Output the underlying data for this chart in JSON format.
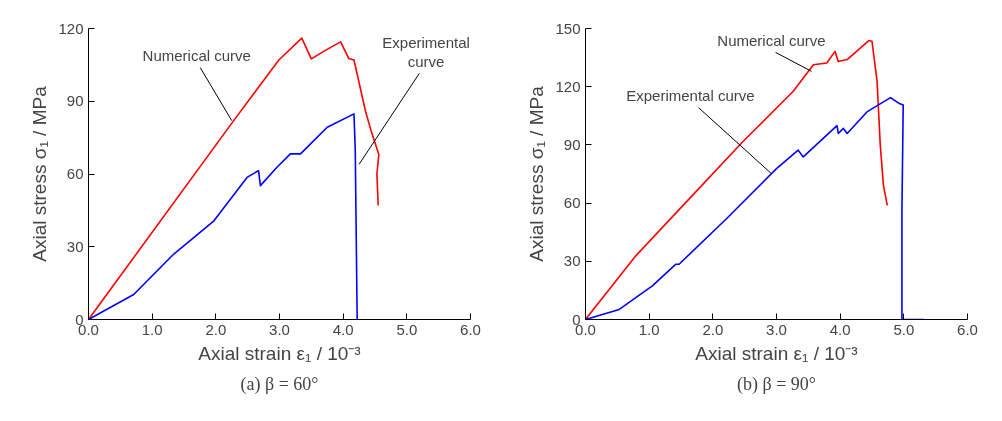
{
  "chart_data": [
    {
      "type": "line",
      "title": "(a) β = 60°",
      "xlabel": "Axial strain ε₁ / 10⁻³",
      "ylabel": "Axial stress σ₁ / MPa",
      "xlim": [
        0,
        6
      ],
      "ylim": [
        0,
        120
      ],
      "xticks": [
        {
          "value": 0,
          "label": "0.0"
        },
        {
          "value": 1,
          "label": "1.0"
        },
        {
          "value": 2,
          "label": "2.0"
        },
        {
          "value": 3,
          "label": "3.0"
        },
        {
          "value": 4,
          "label": "4.0"
        },
        {
          "value": 5,
          "label": "5.0"
        },
        {
          "value": 6,
          "label": "6.0"
        }
      ],
      "yticks": [
        0,
        30,
        60,
        90,
        120
      ],
      "grid": false,
      "marker": "none",
      "line_style": "solid",
      "series": [
        {
          "color": "#ff0000",
          "x": [
            0,
            2.28,
            2.99,
            3.35,
            3.5,
            3.72,
            3.96,
            4.09,
            4.17,
            4.35,
            4.43,
            4.56,
            4.53,
            4.55
          ],
          "values": [
            0,
            82,
            107,
            116,
            107.5,
            111,
            114.5,
            107.6,
            107,
            86,
            78.6,
            68,
            60,
            47
          ]
        },
        {
          "color": "#0000ff",
          "x": [
            0,
            0.71,
            1.34,
            1.97,
            2.49,
            2.67,
            2.7,
            2.96,
            3.17,
            3.33,
            3.75,
            4.17,
            4.19,
            4.22
          ],
          "values": [
            0,
            10.3,
            27,
            40.7,
            58.6,
            61.4,
            55.2,
            62.8,
            68.3,
            68.3,
            79.3,
            84.8,
            69.7,
            0
          ]
        }
      ],
      "annotations": [
        {
          "text": "Numerical curve",
          "x": 2.25,
          "y": 82
        },
        {
          "text": "Experimental curve",
          "x": 4.25,
          "y": 64
        }
      ]
    },
    {
      "type": "line",
      "title": "(b) β = 90°",
      "xlabel": "Axial strain ε₁ / 10⁻³",
      "ylabel": "Axial stress σ₁ / MPa",
      "xlim": [
        0,
        6
      ],
      "ylim": [
        0,
        150
      ],
      "xticks": [
        {
          "value": 0,
          "label": "0.0"
        },
        {
          "value": 1,
          "label": "1.0"
        },
        {
          "value": 2,
          "label": "2.0"
        },
        {
          "value": 3,
          "label": "3.0"
        },
        {
          "value": 4,
          "label": "4.0"
        },
        {
          "value": 5,
          "label": "5.0"
        },
        {
          "value": 6,
          "label": "6.0"
        }
      ],
      "yticks": [
        0,
        30,
        60,
        90,
        120,
        150
      ],
      "grid": false,
      "marker": "none",
      "line_style": "solid",
      "series": [
        {
          "color": "#ff0000",
          "x": [
            0,
            0.79,
            1.68,
            2.47,
            3.26,
            3.58,
            3.79,
            3.92,
            3.97,
            4.11,
            4.45,
            4.5,
            4.58,
            4.63,
            4.68,
            4.74
          ],
          "values": [
            0,
            32.8,
            64,
            91.6,
            117.5,
            131.3,
            132.2,
            138.2,
            133,
            134,
            143.8,
            143.4,
            122.7,
            89.9,
            69,
            58.8
          ]
        },
        {
          "color": "#0000ff",
          "x": [
            0,
            0.53,
            1.05,
            1.42,
            1.47,
            2.21,
            3.0,
            3.34,
            3.42,
            3.95,
            3.97,
            4.05,
            4.11,
            4.42,
            4.79,
            4.92,
            4.99,
            4.97,
            4.97,
            5.32
          ],
          "values": [
            0,
            5.2,
            17.3,
            28.5,
            28.5,
            51.8,
            77.8,
            87.3,
            83.8,
            99.9,
            95.9,
            98.5,
            95.9,
            107,
            114.4,
            111.5,
            110.6,
            55.3,
            0,
            0
          ]
        }
      ],
      "annotations": [
        {
          "text": "Numerical curve",
          "x": 3.55,
          "y": 127.9
        },
        {
          "text": "Experimental curve",
          "x": 2.92,
          "y": 75.2
        }
      ]
    }
  ]
}
